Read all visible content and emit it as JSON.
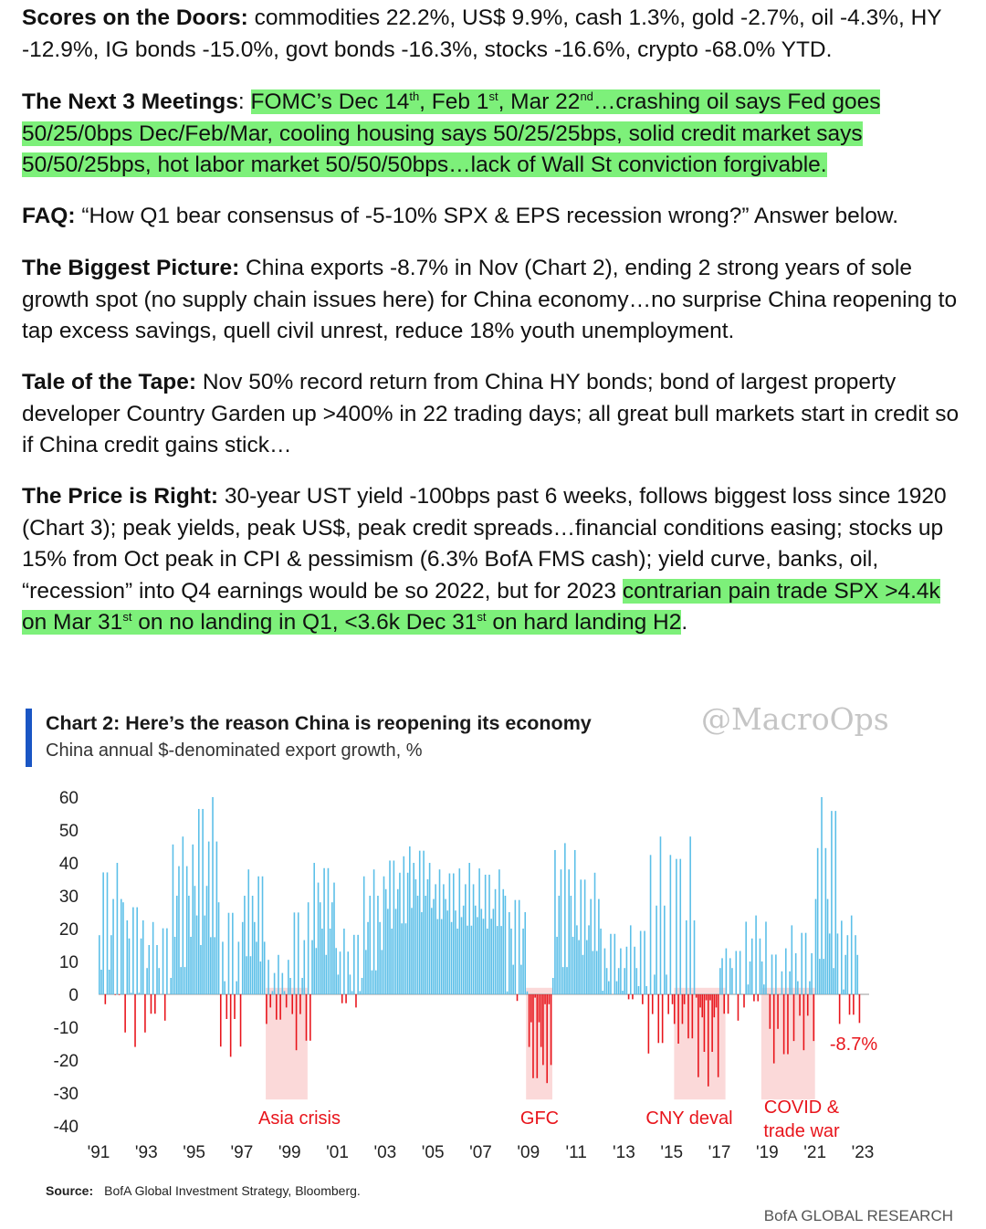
{
  "paragraphs": {
    "scores": {
      "label": "Scores on the Doors:",
      "text": " commodities 22.2%, US$ 9.9%, cash 1.3%, gold -2.7%, oil -4.3%, HY -12.9%, IG bonds -15.0%, govt bonds -16.3%, stocks -16.6%, crypto -68.0% YTD."
    },
    "meetings": {
      "label": "The Next 3 Meetings",
      "colon": ": ",
      "h1": "FOMC’s Dec 14",
      "s1": "th",
      "h2": ", Feb 1",
      "s2": "st",
      "h3": ", Mar 22",
      "s3": "nd",
      "h4": "…crashing oil says Fed goes 50/25/0bps Dec/Feb/Mar, cooling housing says 50/25/25bps, solid credit market says 50/50/25bps, hot labor market 50/50/50bps…lack of Wall St conviction forgivable."
    },
    "faq": {
      "label": "FAQ:",
      "text": " “How Q1 bear consensus of -5-10% SPX & EPS recession wrong?” Answer below."
    },
    "biggest": {
      "label": "The Biggest Picture:",
      "text": " China exports -8.7% in Nov (Chart 2), ending 2 strong years of sole growth spot (no supply chain issues here) for China economy…no surprise China reopening to tap excess savings, quell civil unrest, reduce 18% youth unemployment."
    },
    "tape": {
      "label": "Tale of the Tape:",
      "text": " Nov 50% record return from China HY bonds; bond of largest property developer Country Garden up >400% in 22 trading days; all great bull markets start in credit so if China credit gains stick…"
    },
    "price": {
      "label": "The Price is Right:",
      "text": " 30-year UST yield -100bps past 6 weeks, follows biggest loss since 1920 (Chart 3); peak yields, peak US$, peak credit spreads…financial conditions easing; stocks up 15% from Oct peak in CPI & pessimism (6.3% BofA FMS cash); yield curve, banks, oil, “recession” into Q4 earnings would be so 2022, but for 2023 ",
      "h1": "contrarian pain trade SPX >4.4k on Mar 31",
      "s1": "st",
      "h2": " on no landing in Q1, <3.6k Dec 31",
      "s2": "st",
      "h3": " on hard landing H2",
      "end": "."
    }
  },
  "chart": {
    "title": "Chart 2: Here’s the reason China is reopening its economy",
    "subtitle": "China annual $-denominated export growth, %",
    "watermark": "@MacroOps",
    "source_label": "Source:",
    "source_text": "BofA Global Investment Strategy, Bloomberg.",
    "brand": "BofA GLOBAL RESEARCH"
  },
  "chart_data": {
    "type": "bar",
    "x_start": "1991-01",
    "x_end": "2022-11",
    "frequency": "monthly",
    "ylim": [
      -40,
      60
    ],
    "yticks": [
      60,
      50,
      40,
      30,
      20,
      10,
      0,
      -10,
      -20,
      -30,
      -40
    ],
    "xticks": [
      "'91",
      "'93",
      "'95",
      "'97",
      "'99",
      "'01",
      "'03",
      "'05",
      "'07",
      "'09",
      "'11",
      "'13",
      "'15",
      "'17",
      "'19",
      "'21",
      "'23"
    ],
    "positive_color": "#5bbfe8",
    "negative_color": "#e8141b",
    "shade_color": "#fbd9d9",
    "annotation_color": "#e8141b",
    "last_value_label": "-8.7%",
    "annual_values": [
      {
        "year": 1991,
        "low": -3,
        "mid": 18,
        "high": 40
      },
      {
        "year": 1992,
        "low": -16,
        "mid": 17,
        "high": 28
      },
      {
        "year": 1993,
        "low": -8,
        "mid": 8,
        "high": 22
      },
      {
        "year": 1994,
        "low": 5,
        "mid": 30,
        "high": 48
      },
      {
        "year": 1995,
        "low": 15,
        "mid": 33,
        "high": 60
      },
      {
        "year": 1996,
        "low": -19,
        "mid": 4,
        "high": 28
      },
      {
        "year": 1997,
        "low": 10,
        "mid": 22,
        "high": 38
      },
      {
        "year": 1998,
        "low": -9,
        "mid": 1,
        "high": 12
      },
      {
        "year": 1999,
        "low": -17,
        "mid": 5,
        "high": 28
      },
      {
        "year": 2000,
        "low": 12,
        "mid": 28,
        "high": 40
      },
      {
        "year": 2001,
        "low": -4,
        "mid": 6,
        "high": 20
      },
      {
        "year": 2002,
        "low": 5,
        "mid": 22,
        "high": 38
      },
      {
        "year": 2003,
        "low": 20,
        "mid": 32,
        "high": 42
      },
      {
        "year": 2004,
        "low": 25,
        "mid": 35,
        "high": 45
      },
      {
        "year": 2005,
        "low": 22,
        "mid": 29,
        "high": 38
      },
      {
        "year": 2006,
        "low": 20,
        "mid": 27,
        "high": 40
      },
      {
        "year": 2007,
        "low": 20,
        "mid": 26,
        "high": 38
      },
      {
        "year": 2008,
        "low": -2,
        "mid": 20,
        "high": 30
      },
      {
        "year": 2009,
        "low": -27,
        "mid": -16,
        "high": -1
      },
      {
        "year": 2010,
        "low": 5,
        "mid": 30,
        "high": 46
      },
      {
        "year": 2011,
        "low": 12,
        "mid": 21,
        "high": 37
      },
      {
        "year": 2012,
        "low": 0,
        "mid": 8,
        "high": 20
      },
      {
        "year": 2013,
        "low": -3,
        "mid": 8,
        "high": 21
      },
      {
        "year": 2014,
        "low": -18,
        "mid": 6,
        "high": 48
      },
      {
        "year": 2015,
        "low": -15,
        "mid": -3,
        "high": 48
      },
      {
        "year": 2016,
        "low": -28,
        "mid": -7,
        "high": -1
      },
      {
        "year": 2017,
        "low": -8,
        "mid": 8,
        "high": 14
      },
      {
        "year": 2018,
        "low": -4,
        "mid": 10,
        "high": 24
      },
      {
        "year": 2019,
        "low": -21,
        "mid": 0,
        "high": 14
      },
      {
        "year": 2020,
        "low": -17,
        "mid": 4,
        "high": 21
      },
      {
        "year": 2021,
        "low": 8,
        "mid": 29,
        "high": 60
      },
      {
        "year": 2022,
        "low": -9,
        "mid": 12,
        "high": 24
      }
    ],
    "annotations": [
      {
        "label": "Asia crisis",
        "shade": [
          1998.0,
          1999.75
        ]
      },
      {
        "label": "GFC",
        "shade": [
          2008.9,
          2010.0
        ]
      },
      {
        "label": "CNY deval",
        "shade": [
          2015.1,
          2017.25
        ]
      },
      {
        "label": "COVID &",
        "label2": "trade war",
        "shade": [
          2018.75,
          2021.0
        ]
      }
    ]
  }
}
